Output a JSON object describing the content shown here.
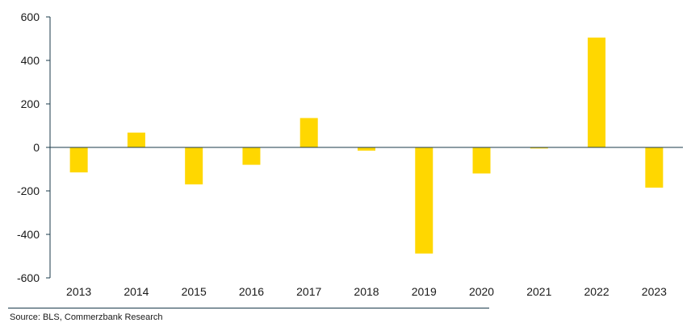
{
  "chart_data": {
    "type": "bar",
    "categories": [
      "2013",
      "2014",
      "2015",
      "2016",
      "2017",
      "2018",
      "2019",
      "2020",
      "2021",
      "2022",
      "2023"
    ],
    "values": [
      -115,
      68,
      -170,
      -80,
      135,
      -15,
      -488,
      -120,
      -5,
      505,
      -185
    ],
    "ylim": [
      -600,
      600
    ],
    "yticks": [
      -600,
      -400,
      -200,
      0,
      200,
      400,
      600
    ],
    "ytick_labels": [
      "-600",
      "-400",
      "-200",
      "0",
      "200",
      "400",
      "600"
    ],
    "bar_color": "#FFD700",
    "axis_color": "#1a3a4a"
  },
  "source": "Source: BLS, Commerzbank Research"
}
